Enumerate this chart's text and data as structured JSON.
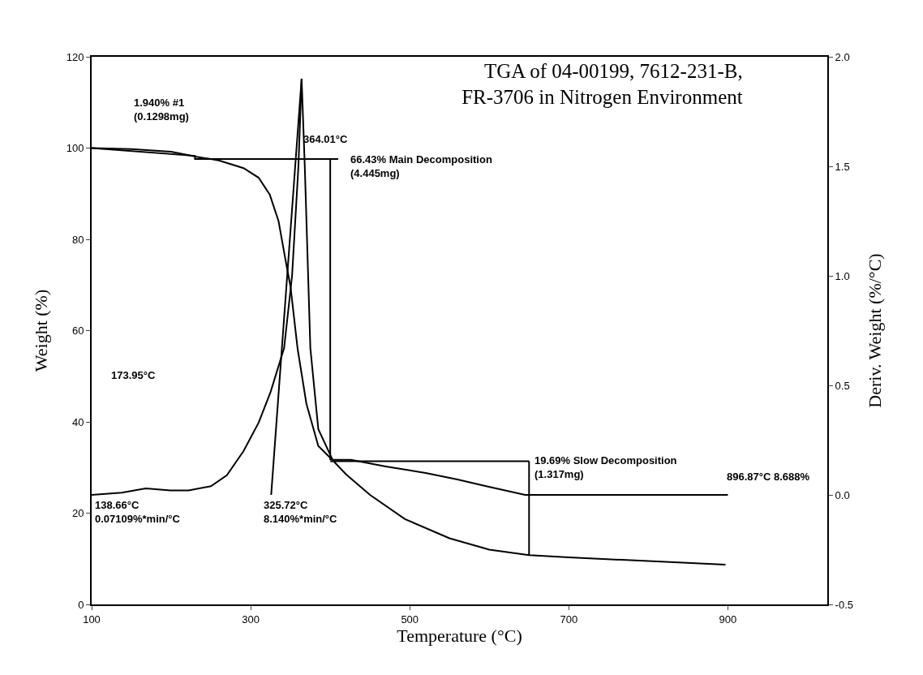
{
  "chart_data": {
    "type": "line",
    "title": "TGA of 04-00199, 7612-231-B,\nFR-3706 in Nitrogen Environment",
    "xlabel": "Temperature (°C)",
    "ylabel": "Weight (%)",
    "y2label": "Deriv. Weight (%/°C)",
    "xlim": [
      100,
      1025
    ],
    "xticks": [
      100,
      300,
      500,
      700,
      900
    ],
    "ylim": [
      0,
      120
    ],
    "yticks": [
      0,
      20,
      40,
      60,
      80,
      100,
      120
    ],
    "y2lim": [
      -0.5,
      2.0
    ],
    "y2ticks": [
      -0.5,
      {
        "value": 0,
        "label": "0.0"
      },
      0.5,
      {
        "value": 1,
        "label": "1.0"
      },
      1.5,
      {
        "value": 2,
        "label": "2.0"
      }
    ],
    "grid": false,
    "marker": "none",
    "line_style": "solid",
    "series": [
      {
        "color": "#000000",
        "x": [
          100,
          150,
          200,
          232,
          260,
          291,
          310,
          324,
          335,
          345,
          350,
          359,
          370,
          385,
          403,
          420,
          450,
          494,
          550,
          600,
          650,
          700,
          800,
          897
        ],
        "values": [
          100,
          99.8,
          99.2,
          98.1,
          97.3,
          95.6,
          93.5,
          89.8,
          84,
          74.3,
          69.7,
          56,
          44,
          34.7,
          31.6,
          28.5,
          24,
          18.7,
          14.5,
          12,
          10.8,
          10.3,
          9.5,
          8.7
        ]
      },
      {
        "color": "#000000",
        "axis": "y2",
        "x": [
          100,
          138,
          168,
          199,
          222,
          250,
          270,
          291,
          310,
          325,
          342,
          352,
          360,
          364,
          368,
          375,
          385,
          403,
          426,
          470,
          520,
          560,
          596,
          645,
          700,
          800,
          900
        ],
        "values": [
          0,
          0.01,
          0.03,
          0.02,
          0.02,
          0.04,
          0.09,
          0.2,
          0.33,
          0.47,
          0.67,
          1.0,
          1.5,
          1.9,
          1.5,
          0.67,
          0.3,
          0.16,
          0.16,
          0.13,
          0.1,
          0.07,
          0.04,
          0,
          0,
          0,
          0
        ]
      },
      {
        "color": "#000000",
        "axis": "y2",
        "x": [
          325.72,
          364.01
        ],
        "values": [
          0,
          1.9
        ]
      },
      {
        "color": "#000000",
        "x": [
          100,
          230,
          230,
          410
        ],
        "values": [
          100,
          98.3,
          97.6,
          97.6
        ]
      },
      {
        "color": "#000000",
        "x": [
          400,
          400
        ],
        "values": [
          97.6,
          31.6
        ]
      },
      {
        "color": "#000000",
        "x": [
          400,
          650
        ],
        "values": [
          31.4,
          31.4
        ]
      },
      {
        "color": "#000000",
        "x": [
          650,
          650
        ],
        "values": [
          31.4,
          10.8
        ]
      }
    ],
    "annotations": [
      "1.940% #1\n(0.1298mg)",
      {
        "text": "364.01°C",
        "x": 364,
        "y": 102
      },
      "66.43% Main Decomposition\n(4.445mg)",
      "173.95°C",
      "138.66°C\n0.07109%*min/°C",
      "325.72°C\n8.140%*min/°C",
      {
        "text": "19.69% Slow Decomposition\n(1.317mg)",
        "x": 655,
        "y": 30
      },
      "896.87°C 8.688%"
    ]
  }
}
